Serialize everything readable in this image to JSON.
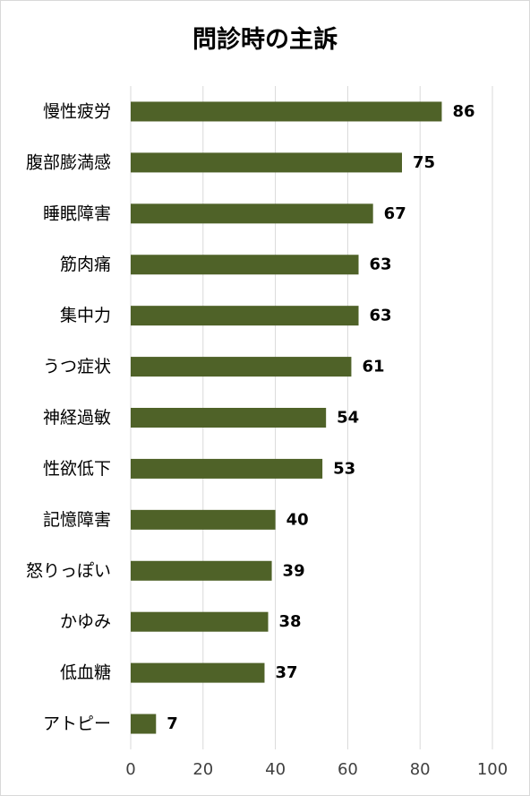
{
  "chart_data": {
    "type": "bar",
    "orientation": "horizontal",
    "title": "問診時の主訴",
    "categories": [
      "慢性疲労",
      "腹部膨満感",
      "睡眠障害",
      "筋肉痛",
      "集中力",
      "うつ症状",
      "神経過敏",
      "性欲低下",
      "記憶障害",
      "怒りっぽい",
      "かゆみ",
      "低血糖",
      "アトピー"
    ],
    "values": [
      86,
      75,
      67,
      63,
      63,
      61,
      54,
      53,
      40,
      39,
      38,
      37,
      7
    ],
    "xlim": [
      0,
      100
    ],
    "xticks": [
      0,
      20,
      40,
      60,
      80,
      100
    ],
    "grid": true,
    "legend": "none",
    "bar_color": "#4f6228",
    "grid_color": "#d9d9d9"
  }
}
